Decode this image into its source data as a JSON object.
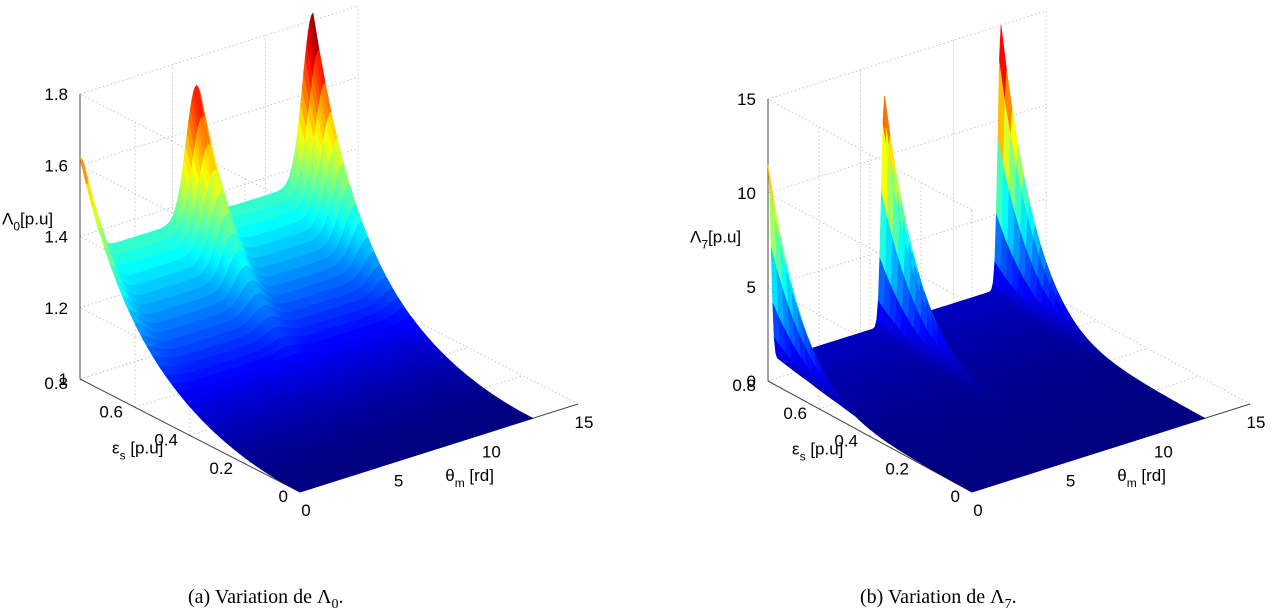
{
  "captions": {
    "a": {
      "prefix": "(a)  Variation de Λ",
      "sub": "0",
      "suffix": "."
    },
    "b": {
      "prefix": "(b)  Variation de Λ",
      "sub": "7",
      "suffix": "."
    }
  },
  "chart_data": [
    {
      "type": "surface",
      "zlabel": {
        "main": "Λ",
        "sub": "0",
        "rest": "[p.u]"
      },
      "ylabel": {
        "main": "ε",
        "sub": "s",
        "rest": " [p.u]"
      },
      "xlabel": {
        "main": "θ",
        "sub": "m",
        "rest": " [rd]"
      },
      "xlim": [
        0,
        15
      ],
      "ylim": [
        0,
        0.8
      ],
      "zlim": [
        1,
        1.8
      ],
      "xticks": [
        "0",
        "5",
        "10",
        "15"
      ],
      "yticks": [
        "0",
        "0.2",
        "0.4",
        "0.6",
        "0.8"
      ],
      "zticks": [
        "1",
        "1.2",
        "1.4",
        "1.6",
        "1.8"
      ],
      "grid": true,
      "colormap": "jet",
      "x_range": [
        0,
        12.57
      ],
      "y_range": [
        0,
        0.8
      ],
      "peaks": [
        {
          "x": 0,
          "y": 0.8,
          "z": 1.62
        },
        {
          "x": 6.28,
          "y": 0.8,
          "z": 1.72
        },
        {
          "x": 12.57,
          "y": 0.8,
          "z": 1.82
        }
      ],
      "z_at_peak_base": 1.35,
      "z_at_y0": 1.0
    },
    {
      "type": "surface",
      "zlabel": {
        "main": "Λ",
        "sub": "7",
        "rest": "[p.u]"
      },
      "ylabel": {
        "main": "ε",
        "sub": "s",
        "rest": " [p.u]"
      },
      "xlabel": {
        "main": "θ",
        "sub": "m",
        "rest": " [rd]"
      },
      "xlim": [
        0,
        15
      ],
      "ylim": [
        0,
        0.8
      ],
      "zlim": [
        0,
        15
      ],
      "xticks": [
        "0",
        "5",
        "10",
        "15"
      ],
      "yticks": [
        "0",
        "0.2",
        "0.4",
        "0.6",
        "0.8"
      ],
      "zticks": [
        "0",
        "5",
        "10",
        "15"
      ],
      "grid": true,
      "colormap": "jet",
      "x_range": [
        0,
        12.57
      ],
      "y_range": [
        0,
        0.8
      ],
      "peaks": [
        {
          "x": 0,
          "y": 0.8,
          "z": 11.5
        },
        {
          "x": 6.28,
          "y": 0.8,
          "z": 13.2
        },
        {
          "x": 12.57,
          "y": 0.8,
          "z": 15.0
        }
      ],
      "z_at_peak_base": 1.0,
      "z_at_y0": 0.0
    }
  ]
}
